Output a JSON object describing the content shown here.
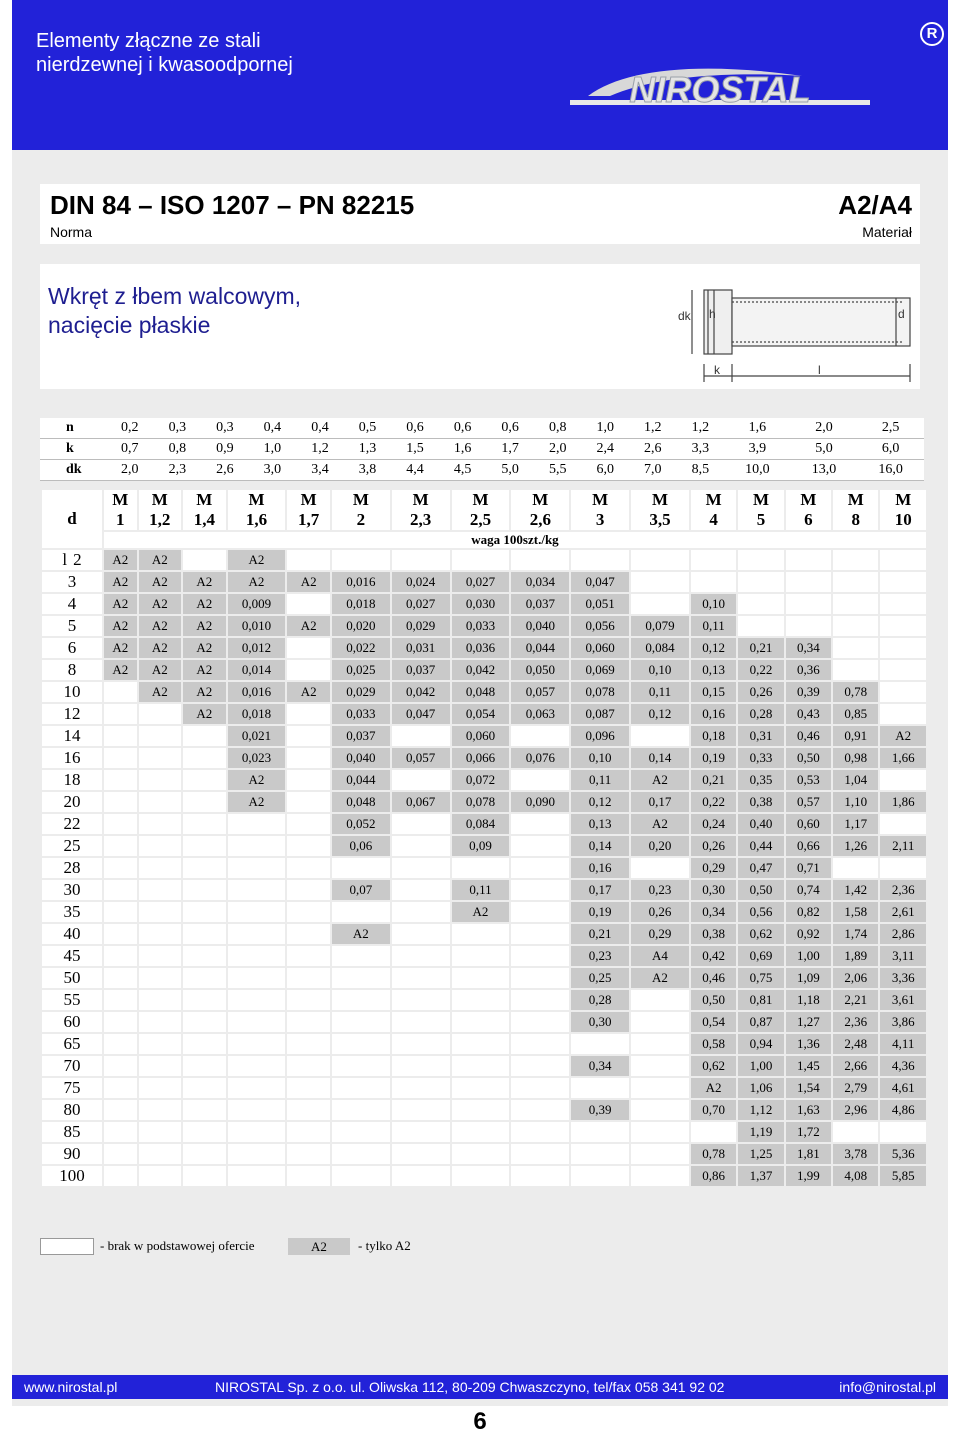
{
  "header": {
    "line1": "Elementy złączne ze stali",
    "line2": "nierdzewnej i kwasoodpornej",
    "brand": "NIROSTAL",
    "registered": "R"
  },
  "norm": {
    "title": "DIN 84 – ISO 1207 – PN 82215",
    "norm_label": "Norma",
    "material": "A2/A4",
    "material_label": "Materiał"
  },
  "product": {
    "title_line1": "Wkręt z łbem walcowym,",
    "title_line2": "nacięcie płaskie"
  },
  "drawing": {
    "labels": [
      "dk",
      "h",
      "d",
      "k",
      "l"
    ]
  },
  "specs": [
    {
      "label": "n",
      "values": [
        "0,2",
        "0,3",
        "0,3",
        "0,4",
        "0,4",
        "0,5",
        "0,6",
        "0,6",
        "0,6",
        "0,8",
        "1,0",
        "1,2",
        "1,2",
        "1,6",
        "2,0",
        "2,5"
      ]
    },
    {
      "label": "k",
      "values": [
        "0,7",
        "0,8",
        "0,9",
        "1,0",
        "1,2",
        "1,3",
        "1,5",
        "1,6",
        "1,7",
        "2,0",
        "2,4",
        "2,6",
        "3,3",
        "3,9",
        "5,0",
        "6,0"
      ]
    },
    {
      "label": "dk",
      "values": [
        "2,0",
        "2,3",
        "2,6",
        "3,0",
        "3,4",
        "3,8",
        "4,4",
        "4,5",
        "5,0",
        "5,5",
        "6,0",
        "7,0",
        "8,5",
        "10,0",
        "13,0",
        "16,0"
      ]
    }
  ],
  "table": {
    "d_label": "d",
    "first_row_prefix": "l",
    "weight_label": "waga 100szt./kg",
    "sizes": [
      [
        "M",
        "1"
      ],
      [
        "M",
        "1,2"
      ],
      [
        "M",
        "1,4"
      ],
      [
        "M",
        "1,6"
      ],
      [
        "M",
        "1,7"
      ],
      [
        "M",
        "2"
      ],
      [
        "M",
        "2,3"
      ],
      [
        "M",
        "2,5"
      ],
      [
        "M",
        "2,6"
      ],
      [
        "M",
        "3"
      ],
      [
        "M",
        "3,5"
      ],
      [
        "M",
        "4"
      ],
      [
        "M",
        "5"
      ],
      [
        "M",
        "6"
      ],
      [
        "M",
        "8"
      ],
      [
        "M",
        "10"
      ]
    ],
    "rows": [
      {
        "l": "2",
        "cells": [
          "A2",
          "A2",
          "",
          "A2",
          "",
          "",
          "",
          "",
          "",
          "",
          "",
          "",
          "",
          "",
          "",
          ""
        ]
      },
      {
        "l": "3",
        "cells": [
          "A2",
          "A2",
          "A2",
          "A2",
          "A2",
          "0,016",
          "0,024",
          "0,027",
          "0,034",
          "0,047",
          "",
          "",
          "",
          "",
          "",
          ""
        ]
      },
      {
        "l": "4",
        "cells": [
          "A2",
          "A2",
          "A2",
          "0,009",
          "",
          "0,018",
          "0,027",
          "0,030",
          "0,037",
          "0,051",
          "",
          "0,10",
          "",
          "",
          "",
          ""
        ]
      },
      {
        "l": "5",
        "cells": [
          "A2",
          "A2",
          "A2",
          "0,010",
          "A2",
          "0,020",
          "0,029",
          "0,033",
          "0,040",
          "0,056",
          "0,079",
          "0,11",
          "",
          "",
          "",
          ""
        ]
      },
      {
        "l": "6",
        "cells": [
          "A2",
          "A2",
          "A2",
          "0,012",
          "",
          "0,022",
          "0,031",
          "0,036",
          "0,044",
          "0,060",
          "0,084",
          "0,12",
          "0,21",
          "0,34",
          "",
          ""
        ]
      },
      {
        "l": "8",
        "cells": [
          "A2",
          "A2",
          "A2",
          "0,014",
          "",
          "0,025",
          "0,037",
          "0,042",
          "0,050",
          "0,069",
          "0,10",
          "0,13",
          "0,22",
          "0,36",
          "",
          ""
        ]
      },
      {
        "l": "10",
        "cells": [
          "",
          "A2",
          "A2",
          "0,016",
          "A2",
          "0,029",
          "0,042",
          "0,048",
          "0,057",
          "0,078",
          "0,11",
          "0,15",
          "0,26",
          "0,39",
          "0,78",
          ""
        ]
      },
      {
        "l": "12",
        "cells": [
          "",
          "",
          "A2",
          "0,018",
          "",
          "0,033",
          "0,047",
          "0,054",
          "0,063",
          "0,087",
          "0,12",
          "0,16",
          "0,28",
          "0,43",
          "0,85",
          ""
        ]
      },
      {
        "l": "14",
        "cells": [
          "",
          "",
          "",
          "0,021",
          "",
          "0,037",
          "",
          "0,060",
          "",
          "0,096",
          "",
          "0,18",
          "0,31",
          "0,46",
          "0,91",
          "A2"
        ]
      },
      {
        "l": "16",
        "cells": [
          "",
          "",
          "",
          "0,023",
          "",
          "0,040",
          "0,057",
          "0,066",
          "0,076",
          "0,10",
          "0,14",
          "0,19",
          "0,33",
          "0,50",
          "0,98",
          "1,66"
        ]
      },
      {
        "l": "18",
        "cells": [
          "",
          "",
          "",
          "A2",
          "",
          "0,044",
          "",
          "0,072",
          "",
          "0,11",
          "A2",
          "0,21",
          "0,35",
          "0,53",
          "1,04",
          ""
        ]
      },
      {
        "l": "20",
        "cells": [
          "",
          "",
          "",
          "A2",
          "",
          "0,048",
          "0,067",
          "0,078",
          "0,090",
          "0,12",
          "0,17",
          "0,22",
          "0,38",
          "0,57",
          "1,10",
          "1,86"
        ]
      },
      {
        "l": "22",
        "cells": [
          "",
          "",
          "",
          "",
          "",
          "0,052",
          "",
          "0,084",
          "",
          "0,13",
          "A2",
          "0,24",
          "0,40",
          "0,60",
          "1,17",
          ""
        ]
      },
      {
        "l": "25",
        "cells": [
          "",
          "",
          "",
          "",
          "",
          "0,06",
          "",
          "0,09",
          "",
          "0,14",
          "0,20",
          "0,26",
          "0,44",
          "0,66",
          "1,26",
          "2,11"
        ]
      },
      {
        "l": "28",
        "cells": [
          "",
          "",
          "",
          "",
          "",
          "",
          "",
          "",
          "",
          "0,16",
          "",
          "0,29",
          "0,47",
          "0,71",
          "",
          ""
        ]
      },
      {
        "l": "30",
        "cells": [
          "",
          "",
          "",
          "",
          "",
          "0,07",
          "",
          "0,11",
          "",
          "0,17",
          "0,23",
          "0,30",
          "0,50",
          "0,74",
          "1,42",
          "2,36"
        ]
      },
      {
        "l": "35",
        "cells": [
          "",
          "",
          "",
          "",
          "",
          "",
          "",
          "A2",
          "",
          "0,19",
          "0,26",
          "0,34",
          "0,56",
          "0,82",
          "1,58",
          "2,61"
        ]
      },
      {
        "l": "40",
        "cells": [
          "",
          "",
          "",
          "",
          "",
          "A2",
          "",
          "",
          "",
          "0,21",
          "0,29",
          "0,38",
          "0,62",
          "0,92",
          "1,74",
          "2,86"
        ]
      },
      {
        "l": "45",
        "cells": [
          "",
          "",
          "",
          "",
          "",
          "",
          "",
          "",
          "",
          "0,23",
          "A4",
          "0,42",
          "0,69",
          "1,00",
          "1,89",
          "3,11"
        ]
      },
      {
        "l": "50",
        "cells": [
          "",
          "",
          "",
          "",
          "",
          "",
          "",
          "",
          "",
          "0,25",
          "A2",
          "0,46",
          "0,75",
          "1,09",
          "2,06",
          "3,36"
        ]
      },
      {
        "l": "55",
        "cells": [
          "",
          "",
          "",
          "",
          "",
          "",
          "",
          "",
          "",
          "0,28",
          "",
          "0,50",
          "0,81",
          "1,18",
          "2,21",
          "3,61"
        ]
      },
      {
        "l": "60",
        "cells": [
          "",
          "",
          "",
          "",
          "",
          "",
          "",
          "",
          "",
          "0,30",
          "",
          "0,54",
          "0,87",
          "1,27",
          "2,36",
          "3,86"
        ]
      },
      {
        "l": "65",
        "cells": [
          "",
          "",
          "",
          "",
          "",
          "",
          "",
          "",
          "",
          "",
          "",
          "0,58",
          "0,94",
          "1,36",
          "2,48",
          "4,11"
        ]
      },
      {
        "l": "70",
        "cells": [
          "",
          "",
          "",
          "",
          "",
          "",
          "",
          "",
          "",
          "0,34",
          "",
          "0,62",
          "1,00",
          "1,45",
          "2,66",
          "4,36"
        ]
      },
      {
        "l": "75",
        "cells": [
          "",
          "",
          "",
          "",
          "",
          "",
          "",
          "",
          "",
          "",
          "",
          "A2",
          "1,06",
          "1,54",
          "2,79",
          "4,61"
        ]
      },
      {
        "l": "80",
        "cells": [
          "",
          "",
          "",
          "",
          "",
          "",
          "",
          "",
          "",
          "0,39",
          "",
          "0,70",
          "1,12",
          "1,63",
          "2,96",
          "4,86"
        ]
      },
      {
        "l": "85",
        "cells": [
          "",
          "",
          "",
          "",
          "",
          "",
          "",
          "",
          "",
          "",
          "",
          "",
          "1,19",
          "1,72",
          "",
          ""
        ]
      },
      {
        "l": "90",
        "cells": [
          "",
          "",
          "",
          "",
          "",
          "",
          "",
          "",
          "",
          "",
          "",
          "0,78",
          "1,25",
          "1,81",
          "3,78",
          "5,36"
        ]
      },
      {
        "l": "100",
        "cells": [
          "",
          "",
          "",
          "",
          "",
          "",
          "",
          "",
          "",
          "",
          "",
          "0,86",
          "1,37",
          "1,99",
          "4,08",
          "5,85"
        ]
      }
    ]
  },
  "legend": {
    "not_offered": "- brak w podstawowej ofercie",
    "a2_box": "A2",
    "a2_only": "- tylko A2"
  },
  "footer": {
    "web": "www.nirostal.pl",
    "address": "NIROSTAL Sp. z o.o.  ul. Oliwska 112, 80-209 Chwaszczyno, tel/fax 058 341 92 02",
    "email": "info@nirostal.pl"
  },
  "page_number": "6",
  "colors": {
    "blue": "#2222d8",
    "grey_cell": "#c9c9c9",
    "frame": "#ececec"
  }
}
